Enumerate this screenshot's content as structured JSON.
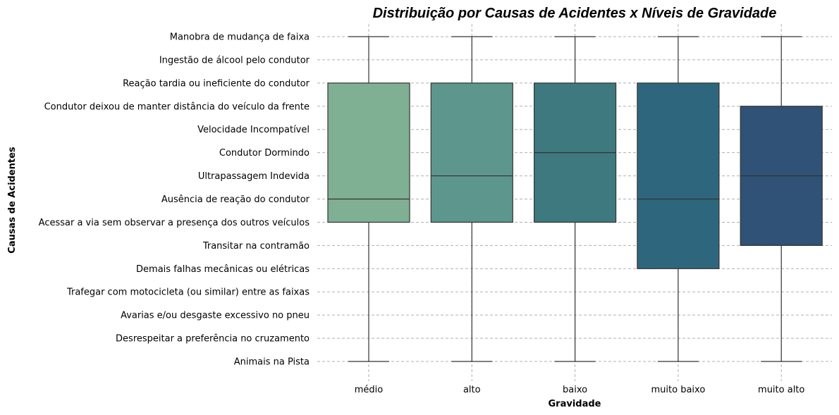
{
  "chart_data": {
    "type": "box",
    "title": "Distribuição por Causas de Acidentes x Níveis de Gravidade",
    "xlabel": "Gravidade",
    "ylabel": "Causas de Acidentes",
    "grid": true,
    "y_categories": [
      "Manobra de mudança de faixa",
      "Ingestão de álcool pelo condutor",
      "Reação tardia ou ineficiente do condutor",
      "Condutor deixou de manter distância do veículo da frente",
      "Velocidade Incompatível",
      "Condutor Dormindo",
      "Ultrapassagem Indevida",
      "Ausência de reação do condutor",
      "Acessar a via sem observar a presença dos outros veículos",
      "Transitar na contramão",
      "Demais falhas mecânicas ou elétricas",
      "Trafegar com motocicleta (ou similar) entre as faixas",
      "Avarias e/ou desgaste excessivo no pneu",
      "Desrespeitar a preferência no cruzamento",
      "Animais na Pista"
    ],
    "categories": [
      "médio",
      "alto",
      "baixo",
      "muito baixo",
      "muito alto"
    ],
    "boxes": [
      {
        "category": "médio",
        "whisker_top": 0,
        "q1": 2,
        "median": 7,
        "q3": 8,
        "whisker_bottom": 14,
        "color": "#7fb093"
      },
      {
        "category": "alto",
        "whisker_top": 0,
        "q1": 2,
        "median": 6,
        "q3": 8,
        "whisker_bottom": 14,
        "color": "#5c968c"
      },
      {
        "category": "baixo",
        "whisker_top": 0,
        "q1": 2,
        "median": 5,
        "q3": 8,
        "whisker_bottom": 14,
        "color": "#3e797f"
      },
      {
        "category": "muito baixo",
        "whisker_top": 0,
        "q1": 2,
        "median": 7,
        "q3": 10,
        "whisker_bottom": 14,
        "color": "#2e677d"
      },
      {
        "category": "muito alto",
        "whisker_top": 0,
        "q1": 3,
        "median": 6,
        "q3": 9,
        "whisker_bottom": 14,
        "color": "#2f5276"
      }
    ]
  }
}
